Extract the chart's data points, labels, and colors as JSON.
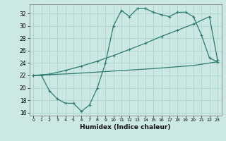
{
  "xlabel": "Humidex (Indice chaleur)",
  "bg_color": "#cce8e4",
  "line_color": "#2d7a6e",
  "grid_color": "#b0d8d0",
  "xlim": [
    -0.5,
    23.5
  ],
  "ylim": [
    15.5,
    33.5
  ],
  "yticks": [
    16,
    18,
    20,
    22,
    24,
    26,
    28,
    30,
    32
  ],
  "xticks": [
    0,
    1,
    2,
    3,
    4,
    5,
    6,
    7,
    8,
    9,
    10,
    11,
    12,
    13,
    14,
    15,
    16,
    17,
    18,
    19,
    20,
    21,
    22,
    23
  ],
  "line1_x": [
    0,
    1,
    2,
    3,
    4,
    5,
    6,
    7,
    8,
    9,
    10,
    11,
    12,
    13,
    14,
    15,
    16,
    17,
    18,
    19,
    20,
    21,
    22,
    23
  ],
  "line1_y": [
    22,
    22,
    19.5,
    18.2,
    17.5,
    17.5,
    16.2,
    17.2,
    20.0,
    24.0,
    30.0,
    32.5,
    31.5,
    32.8,
    32.8,
    32.2,
    31.8,
    31.5,
    32.2,
    32.2,
    31.5,
    28.5,
    24.8,
    24.2
  ],
  "line2_x": [
    0,
    2,
    4,
    6,
    8,
    10,
    12,
    14,
    16,
    18,
    20,
    22,
    23
  ],
  "line2_y": [
    22.0,
    22.2,
    22.8,
    23.5,
    24.3,
    25.2,
    26.2,
    27.2,
    28.3,
    29.3,
    30.3,
    31.5,
    24.5
  ],
  "line3_x": [
    0,
    5,
    10,
    15,
    20,
    23
  ],
  "line3_y": [
    22.0,
    22.3,
    22.7,
    23.1,
    23.6,
    24.2
  ]
}
